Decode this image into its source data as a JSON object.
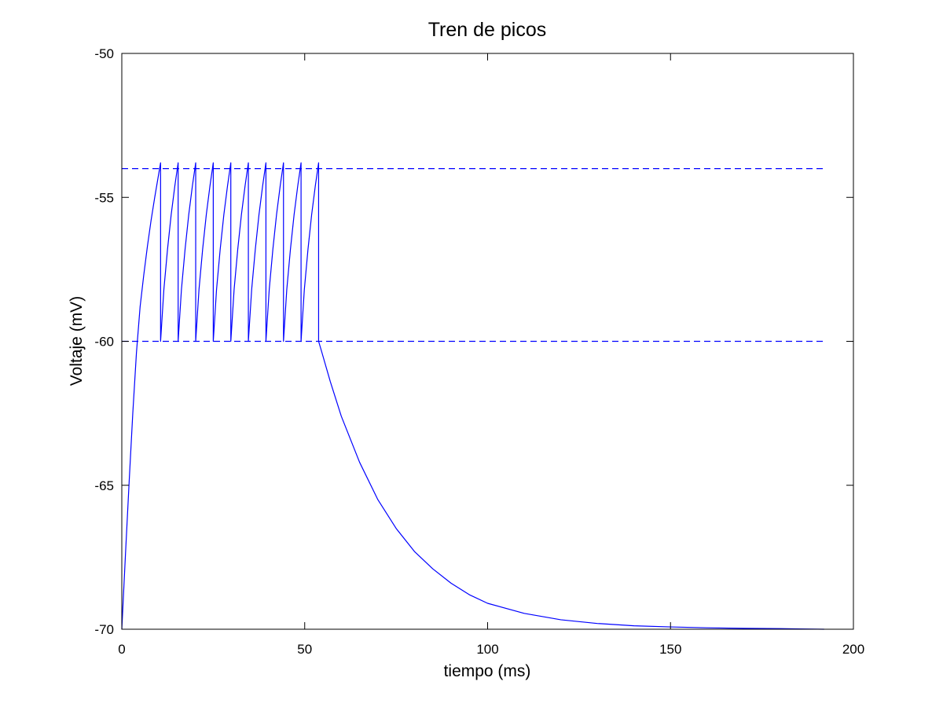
{
  "chart_data": {
    "type": "line",
    "title": "Tren de picos",
    "xlabel": "tiempo (ms)",
    "ylabel": "Voltaje (mV)",
    "xlim": [
      0,
      200
    ],
    "ylim": [
      -70,
      -50
    ],
    "xticks": [
      0,
      50,
      100,
      150,
      200
    ],
    "yticks": [
      -70,
      -65,
      -60,
      -55,
      -50
    ],
    "xtick_labels": [
      "0",
      "50",
      "100",
      "150",
      "200"
    ],
    "ytick_labels": [
      "-70",
      "-65",
      "-60",
      "-55",
      "-50"
    ],
    "grid": false,
    "legend": "none",
    "series": [
      {
        "style": "solid",
        "color": "#0000ff",
        "x": [
          0,
          1,
          2,
          3,
          4,
          5,
          6,
          7,
          8,
          9,
          10.6,
          10.6,
          11.5,
          12.5,
          13.5,
          14.5,
          15.4,
          15.4,
          16.3,
          17.3,
          18.3,
          19.3,
          20.2,
          20.2,
          21.1,
          22.1,
          23.1,
          24.1,
          25,
          25,
          25.9,
          26.9,
          27.9,
          28.9,
          29.8,
          29.8,
          30.7,
          31.7,
          32.7,
          33.7,
          34.6,
          34.6,
          35.5,
          36.5,
          37.5,
          38.5,
          39.4,
          39.4,
          40.3,
          41.3,
          42.3,
          43.3,
          44.2,
          44.2,
          45.1,
          46.1,
          47.1,
          48.1,
          49,
          49,
          49.9,
          50.9,
          51.9,
          52.9,
          53.8,
          53.8,
          54.5,
          57,
          60,
          65,
          70,
          75,
          80,
          85,
          90,
          95,
          100,
          110,
          120,
          130,
          140,
          150,
          160,
          170,
          180,
          192
        ],
        "y": [
          -70,
          -67.4,
          -64.9,
          -62.5,
          -60.4,
          -58.8,
          -57.7,
          -56.7,
          -55.8,
          -55,
          -53.8,
          -60,
          -58.2,
          -56.8,
          -55.6,
          -54.6,
          -53.8,
          -60,
          -58.2,
          -56.8,
          -55.6,
          -54.6,
          -53.8,
          -60,
          -58.2,
          -56.8,
          -55.6,
          -54.6,
          -53.8,
          -60,
          -58.2,
          -56.8,
          -55.6,
          -54.6,
          -53.8,
          -60,
          -58.2,
          -56.8,
          -55.6,
          -54.6,
          -53.8,
          -60,
          -58.2,
          -56.8,
          -55.6,
          -54.6,
          -53.8,
          -60,
          -58.2,
          -56.8,
          -55.6,
          -54.6,
          -53.8,
          -60,
          -58.2,
          -56.8,
          -55.6,
          -54.6,
          -53.8,
          -60,
          -58.2,
          -56.8,
          -55.6,
          -54.6,
          -53.8,
          -60,
          -60.3,
          -61.4,
          -62.6,
          -64.2,
          -65.5,
          -66.5,
          -67.3,
          -67.9,
          -68.4,
          -68.8,
          -69.1,
          -69.45,
          -69.67,
          -69.8,
          -69.88,
          -69.92,
          -69.95,
          -69.97,
          -69.98,
          -70
        ]
      },
      {
        "style": "dashed",
        "color": "#0000ff",
        "x": [
          0,
          192
        ],
        "y": [
          -54,
          -54
        ]
      },
      {
        "style": "dashed",
        "color": "#0000ff",
        "x": [
          0,
          192
        ],
        "y": [
          -60,
          -60
        ]
      }
    ]
  }
}
